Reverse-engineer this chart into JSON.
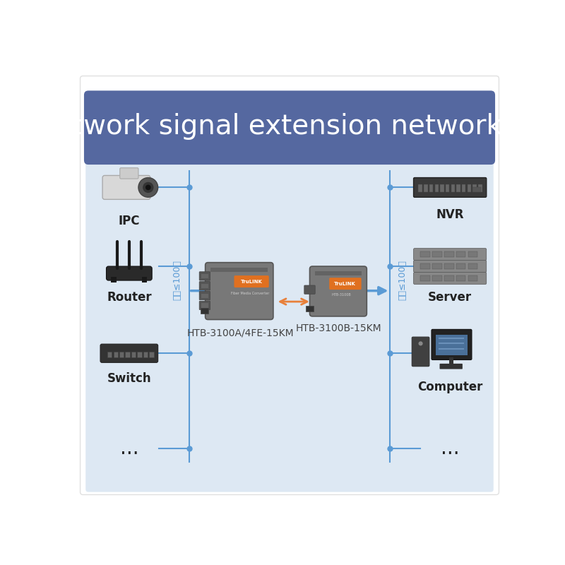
{
  "title": "Network signal extension networking",
  "title_bg_color": "#5568a0",
  "bg_color": "#dde8f3",
  "outer_bg_color": "#ffffff",
  "title_text_color": "#ffffff",
  "title_fontsize": 28,
  "blue_line_color": "#5b9bd5",
  "orange_arrow_color": "#e8803a",
  "label_color_dark": "#222222",
  "left_converter_label": "HTB-3100A/4FE-15KM",
  "right_converter_label": "HTB-3100B-15KM",
  "vertical_text": "网线≤1　00米"
}
